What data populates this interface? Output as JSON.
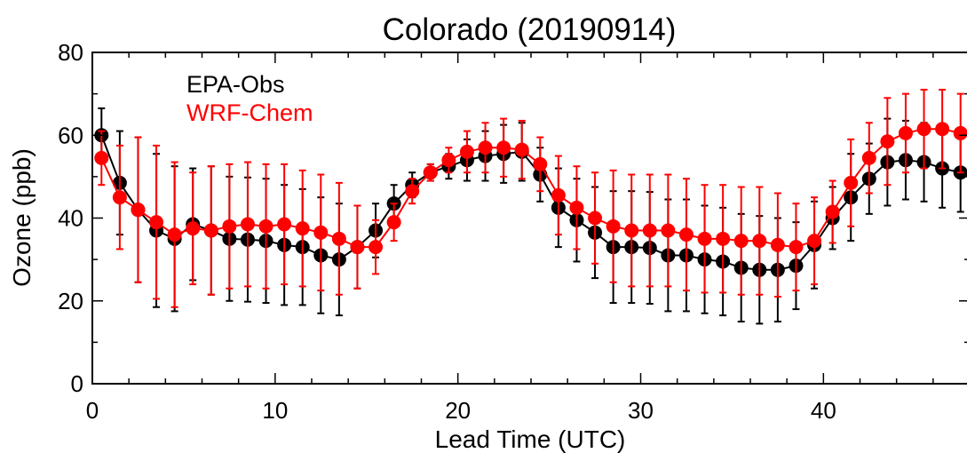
{
  "chart_data": {
    "type": "line",
    "title": "Colorado (20190914)",
    "xlabel": "Lead Time (UTC)",
    "ylabel": "Ozone (ppb)",
    "xlim": [
      0,
      48
    ],
    "ylim": [
      0,
      80
    ],
    "xticks": [
      0,
      10,
      20,
      30,
      40
    ],
    "yticks": [
      0,
      20,
      40,
      60,
      80
    ],
    "grid": false,
    "legend_position": "top-left",
    "x": [
      0.5,
      1.5,
      2.5,
      3.5,
      4.5,
      5.5,
      6.5,
      7.5,
      8.5,
      9.5,
      10.5,
      11.5,
      12.5,
      13.5,
      14.5,
      15.5,
      16.5,
      17.5,
      18.5,
      19.5,
      20.5,
      21.5,
      22.5,
      23.5,
      24.5,
      25.5,
      26.5,
      27.5,
      28.5,
      29.5,
      30.5,
      31.5,
      32.5,
      33.5,
      34.5,
      35.5,
      36.5,
      37.5,
      38.5,
      39.5,
      40.5,
      41.5,
      42.5,
      43.5,
      44.5,
      45.5,
      46.5,
      47.5
    ],
    "series": [
      {
        "name": "EPA-Obs",
        "color": "#000000",
        "values": [
          60.0,
          48.5,
          42.0,
          37.0,
          35.0,
          38.5,
          37.0,
          35.0,
          34.8,
          34.5,
          33.5,
          33.0,
          31.0,
          30.0,
          33.0,
          37.0,
          43.5,
          48.0,
          51.0,
          52.5,
          54.0,
          55.0,
          55.5,
          56.0,
          50.5,
          42.5,
          39.5,
          36.5,
          33.0,
          33.0,
          32.8,
          31.0,
          31.0,
          30.0,
          29.5,
          28.0,
          27.5,
          27.5,
          28.5,
          33.5,
          40.0,
          45.0,
          49.5,
          53.5,
          54.0,
          53.5,
          52.0,
          51.0
        ],
        "err": [
          6.5,
          12.5,
          17.5,
          18.5,
          17.5,
          13.5,
          15.5,
          15.0,
          15.0,
          15.0,
          14.5,
          14.0,
          14.0,
          13.5,
          10.0,
          6.5,
          4.5,
          3.0,
          2.0,
          3.0,
          5.0,
          6.0,
          7.0,
          7.0,
          6.5,
          9.5,
          10.0,
          11.0,
          13.5,
          13.5,
          13.5,
          13.5,
          13.5,
          13.0,
          13.0,
          13.0,
          13.0,
          12.5,
          10.5,
          10.5,
          7.5,
          10.5,
          8.5,
          10.5,
          9.5,
          9.5,
          9.5,
          9.5
        ]
      },
      {
        "name": "WRF-Chem",
        "color": "#ff0000",
        "values": [
          54.5,
          45.0,
          42.0,
          39.0,
          36.0,
          37.5,
          37.0,
          38.0,
          38.5,
          38.0,
          38.5,
          37.5,
          36.5,
          35.0,
          33.0,
          33.0,
          39.0,
          46.5,
          51.0,
          54.0,
          56.0,
          57.0,
          57.0,
          56.5,
          53.0,
          45.5,
          42.5,
          40.0,
          38.0,
          37.0,
          37.0,
          37.0,
          36.0,
          35.0,
          35.0,
          34.5,
          34.5,
          33.5,
          33.0,
          34.5,
          41.5,
          48.5,
          54.5,
          58.5,
          60.5,
          61.5,
          61.5,
          60.5
        ]
      }
    ]
  }
}
